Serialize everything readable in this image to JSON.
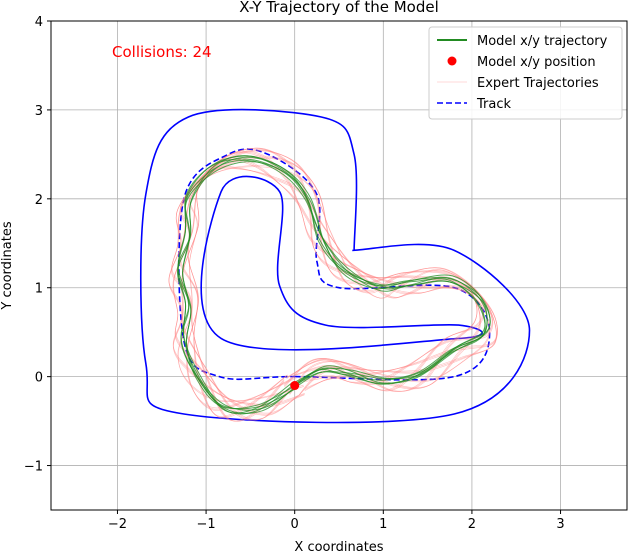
{
  "chart_data": {
    "type": "line",
    "title": "X-Y Trajectory of the Model",
    "xlabel": "X coordinates",
    "ylabel": "Y coordinates",
    "xlim": [
      -2.75,
      3.75
    ],
    "ylim": [
      -1.5,
      4.0
    ],
    "xticks": [
      -2,
      -1,
      0,
      1,
      2,
      3
    ],
    "yticks": [
      -1,
      0,
      1,
      2,
      3,
      4
    ],
    "xtick_labels": [
      "−2",
      "−1",
      "0",
      "1",
      "2",
      "3"
    ],
    "ytick_labels": [
      "−1",
      "0",
      "1",
      "2",
      "3",
      "4"
    ],
    "grid": true,
    "legend_position": "top-right",
    "annotation": "Collisions: 24",
    "legend": [
      {
        "label": "Model x/y trajectory",
        "style": "line",
        "color": "#228b22"
      },
      {
        "label": "Model x/y position",
        "style": "dot",
        "color": "#ff0000"
      },
      {
        "label": "Expert Trajectories",
        "style": "faint-line",
        "color": "#ff9999"
      },
      {
        "label": "Track",
        "style": "dashed",
        "color": "#0000ff"
      }
    ],
    "model_position": {
      "x": 0.0,
      "y": -0.1
    },
    "track": {
      "centerline": [
        [
          0,
          0
        ],
        [
          1.8,
          0
        ],
        [
          2.2,
          0.5
        ],
        [
          1.8,
          1.0
        ],
        [
          0.5,
          1.0
        ],
        [
          0.25,
          1.3
        ],
        [
          0.25,
          2.05
        ],
        [
          -0.3,
          2.5
        ],
        [
          -0.75,
          2.5
        ],
        [
          -1.25,
          2.0
        ],
        [
          -1.25,
          0.4
        ],
        [
          -0.85,
          0.0
        ],
        [
          0,
          0
        ]
      ],
      "outer_boundary": [
        [
          0.65,
          1.42
        ],
        [
          1.8,
          1.42
        ],
        [
          2.65,
          0.52
        ],
        [
          1.8,
          -0.42
        ],
        [
          -1.25,
          -0.42
        ],
        [
          -1.68,
          0.15
        ],
        [
          -1.68,
          2.05
        ],
        [
          -1.2,
          2.92
        ],
        [
          0.3,
          2.92
        ],
        [
          0.67,
          2.5
        ],
        [
          0.67,
          1.42
        ]
      ],
      "inner_boundary": [
        [
          -0.83,
          0.43
        ],
        [
          1.85,
          0.43
        ],
        [
          1.85,
          0.58
        ],
        [
          0.35,
          0.58
        ],
        [
          -0.17,
          1.02
        ],
        [
          -0.17,
          2.08
        ],
        [
          -0.83,
          2.08
        ],
        [
          -0.83,
          0.43
        ]
      ]
    },
    "model_trajectory": [
      [
        0,
        -0.1
      ],
      [
        0.3,
        0.08
      ],
      [
        0.6,
        0.05
      ],
      [
        1.0,
        -0.05
      ],
      [
        1.4,
        0.02
      ],
      [
        1.8,
        0.3
      ],
      [
        2.15,
        0.5
      ],
      [
        2.1,
        0.85
      ],
      [
        1.75,
        1.1
      ],
      [
        1.3,
        1.05
      ],
      [
        0.95,
        1.0
      ],
      [
        0.55,
        1.2
      ],
      [
        0.3,
        1.55
      ],
      [
        0.15,
        2.0
      ],
      [
        -0.1,
        2.3
      ],
      [
        -0.5,
        2.45
      ],
      [
        -0.9,
        2.35
      ],
      [
        -1.2,
        2.0
      ],
      [
        -1.2,
        1.6
      ],
      [
        -1.3,
        1.2
      ],
      [
        -1.2,
        0.8
      ],
      [
        -1.25,
        0.4
      ],
      [
        -1.1,
        0.0
      ],
      [
        -0.8,
        -0.35
      ],
      [
        -0.4,
        -0.35
      ],
      [
        0,
        -0.1
      ]
    ],
    "expert_trajectory_count": 20
  }
}
